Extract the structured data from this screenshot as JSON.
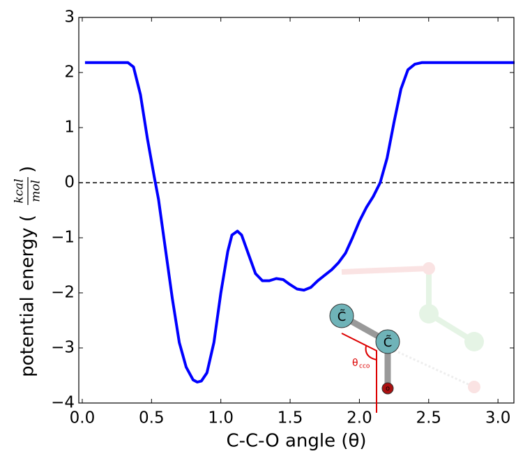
{
  "chart_data": {
    "type": "line",
    "x_label": "C-C-O angle (θ)",
    "y_label": "potential energy (",
    "y_label_numerator": "kcal",
    "y_label_denominator": "mol",
    "y_label_close": ")",
    "xlim": [
      -0.025,
      3.115
    ],
    "ylim": [
      -4,
      3
    ],
    "xticks": [
      {
        "value": 0,
        "label": "0.0"
      },
      0.5,
      {
        "value": 1,
        "label": "1.0"
      },
      1.5,
      {
        "value": 2,
        "label": "2.0"
      },
      2.5,
      {
        "value": 3,
        "label": "3.0"
      }
    ],
    "yticks": [
      {
        "value": -4,
        "label": "−4"
      },
      {
        "value": -3,
        "label": "−3"
      },
      {
        "value": -2,
        "label": "−2"
      },
      {
        "value": -1,
        "label": "−1"
      },
      0,
      1,
      2,
      3
    ],
    "hline": 0,
    "series": [
      {
        "color": "#0000ff",
        "x": [
          0.02,
          0.33,
          0.37,
          0.42,
          0.47,
          0.52,
          0.55,
          0.6,
          0.65,
          0.7,
          0.75,
          0.8,
          0.83,
          0.86,
          0.9,
          0.95,
          1.0,
          1.05,
          1.08,
          1.12,
          1.15,
          1.2,
          1.25,
          1.3,
          1.35,
          1.4,
          1.45,
          1.5,
          1.55,
          1.6,
          1.65,
          1.7,
          1.75,
          1.8,
          1.85,
          1.9,
          1.95,
          2.0,
          2.05,
          2.1,
          2.15,
          2.2,
          2.25,
          2.3,
          2.35,
          2.4,
          2.45,
          3.12
        ],
        "values": [
          2.18,
          2.18,
          2.1,
          1.6,
          0.8,
          0.1,
          -0.3,
          -1.2,
          -2.1,
          -2.9,
          -3.35,
          -3.58,
          -3.62,
          -3.6,
          -3.45,
          -2.9,
          -2.0,
          -1.25,
          -0.95,
          -0.88,
          -0.95,
          -1.3,
          -1.65,
          -1.78,
          -1.78,
          -1.74,
          -1.76,
          -1.85,
          -1.93,
          -1.95,
          -1.9,
          -1.78,
          -1.68,
          -1.58,
          -1.45,
          -1.28,
          -1.0,
          -0.7,
          -0.45,
          -0.25,
          0.0,
          0.45,
          1.1,
          1.7,
          2.05,
          2.15,
          2.18,
          2.18
        ]
      }
    ],
    "inset": {
      "atom_top": "C̃",
      "atom_middle": "C̃",
      "atom_bottom": "o",
      "angle_label": "θ",
      "angle_subscript": "cco"
    }
  }
}
